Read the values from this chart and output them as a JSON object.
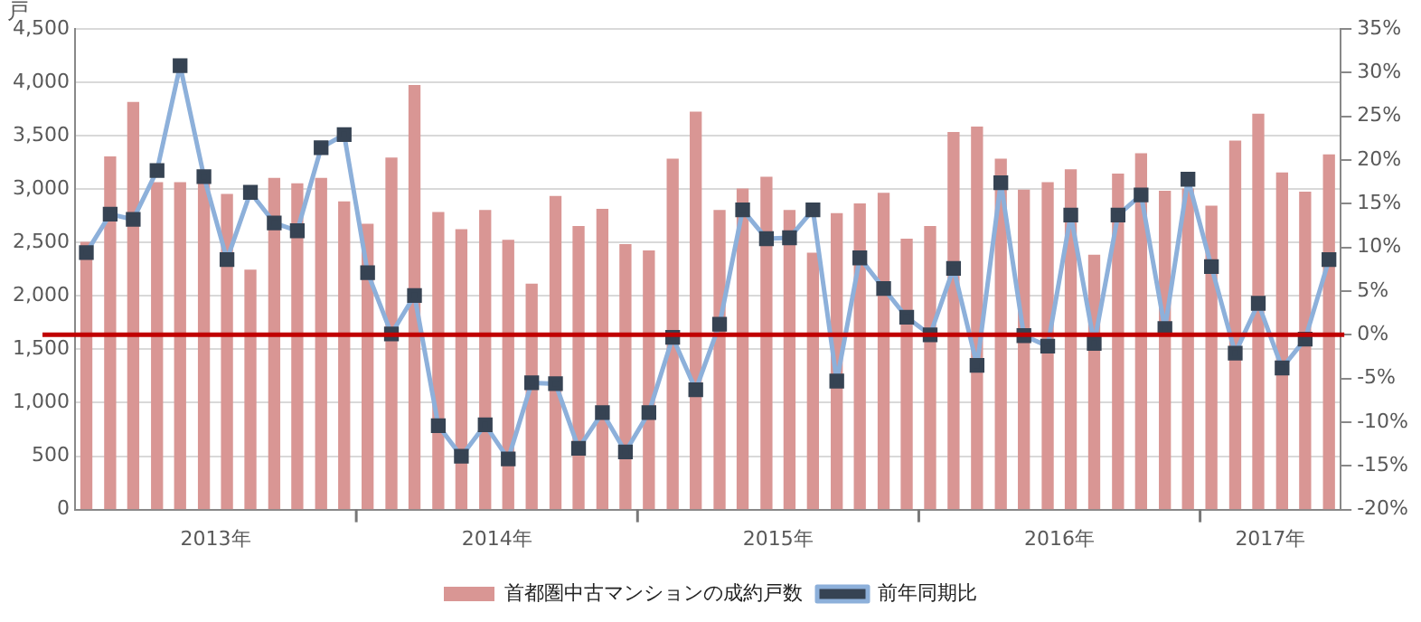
{
  "chart_data": {
    "type": "bar",
    "ylabel": "戸",
    "x": [
      "2013-01-16",
      "2013-02-15",
      "2013-03-16",
      "2013-04-16",
      "2013-05-16",
      "2013-06-16",
      "2013-07-16",
      "2013-08-16",
      "2013-09-16",
      "2013-10-16",
      "2013-11-16",
      "2013-12-16",
      "2014-01-16",
      "2014-02-15",
      "2014-03-16",
      "2014-04-16",
      "2014-05-16",
      "2014-06-16",
      "2014-07-16",
      "2014-08-16",
      "2014-09-16",
      "2014-10-16",
      "2014-11-16",
      "2014-12-16",
      "2015-01-16",
      "2015-02-15",
      "2015-03-16",
      "2015-04-16",
      "2015-05-16",
      "2015-06-16",
      "2015-07-16",
      "2015-08-16",
      "2015-09-16",
      "2015-10-16",
      "2015-11-16",
      "2015-12-16",
      "2016-01-16",
      "2016-02-15",
      "2016-03-16",
      "2016-04-16",
      "2016-05-16",
      "2016-06-16",
      "2016-07-16",
      "2016-08-16",
      "2016-09-16",
      "2016-10-16",
      "2016-11-16",
      "2016-12-16",
      "2017-01-16",
      "2017-02-15",
      "2017-03-16",
      "2017-04-16",
      "2017-05-16",
      "2017-06-16"
    ],
    "series": [
      {
        "name": "首都圏中古マンションの成約戸数",
        "color": "#d99694",
        "values": [
          2500,
          3300,
          3810,
          3060,
          3060,
          3050,
          2950,
          2240,
          3100,
          3050,
          3100,
          2880,
          2670,
          3290,
          3970,
          2780,
          2620,
          2800,
          2520,
          2110,
          2930,
          2650,
          2810,
          2480,
          2420,
          3280,
          3720,
          2800,
          3000,
          3110,
          2800,
          2400,
          2770,
          2860,
          2960,
          2530,
          2650,
          3530,
          3580,
          3280,
          2990,
          3060,
          3180,
          2380,
          3140,
          3330,
          2980,
          3000,
          2840,
          3450,
          3700,
          3150,
          2970,
          3320
        ]
      },
      {
        "name": "前年同期比",
        "type": "line",
        "axis": "y2",
        "color": "#8db0da",
        "values": [
          9.4,
          13.8,
          13.2,
          18.8,
          30.8,
          18.1,
          8.6,
          16.3,
          12.8,
          11.9,
          21.4,
          22.9,
          7.1,
          0.1,
          4.5,
          -10.4,
          -13.9,
          -10.3,
          -14.2,
          -5.5,
          -5.6,
          -13.0,
          -8.9,
          -13.4,
          -8.9,
          -0.3,
          -6.3,
          1.2,
          14.3,
          11.0,
          11.1,
          14.3,
          -5.3,
          8.8,
          5.3,
          2.0,
          0.0,
          7.6,
          -3.5,
          17.4,
          -0.1,
          -1.3,
          13.7,
          -1.0,
          13.7,
          16.0,
          0.7,
          17.8,
          7.8,
          -2.1,
          3.6,
          -3.8,
          -0.5,
          8.6
        ]
      }
    ],
    "xlim": [
      "2013-01-01",
      "2017-07-01"
    ],
    "xticks": [
      {
        "value": "2013-07-01",
        "label": "2013年"
      },
      {
        "value": "2014-01-01",
        "label": null
      },
      {
        "value": "2014-07-01",
        "label": "2014年"
      },
      {
        "value": "2015-01-01",
        "label": null
      },
      {
        "value": "2015-07-01",
        "label": "2015年"
      },
      {
        "value": "2016-01-01",
        "label": null
      },
      {
        "value": "2016-07-01",
        "label": "2016年"
      },
      {
        "value": "2017-01-01",
        "label": null
      },
      {
        "value": "2017-04-01",
        "label": "2017年"
      }
    ],
    "ylim": [
      0,
      4500
    ],
    "yticks": [
      {
        "value": 0,
        "label": "0"
      },
      {
        "value": 500,
        "label": "500"
      },
      {
        "value": 1000,
        "label": "1,000"
      },
      {
        "value": 1500,
        "label": "1,500"
      },
      {
        "value": 2000,
        "label": "2,000"
      },
      {
        "value": 2500,
        "label": "2,500"
      },
      {
        "value": 3000,
        "label": "3,000"
      },
      {
        "value": 3500,
        "label": "3,500"
      },
      {
        "value": 4000,
        "label": "4,000"
      },
      {
        "value": 4500,
        "label": "4,500"
      }
    ],
    "y2lim": [
      -20,
      35
    ],
    "y2ticks": [
      {
        "value": -20,
        "label": "-20%"
      },
      {
        "value": -15,
        "label": "-15%"
      },
      {
        "value": -10,
        "label": "-10%"
      },
      {
        "value": -5,
        "label": "-5%"
      },
      {
        "value": 0,
        "label": "0%"
      },
      {
        "value": 5,
        "label": "5%"
      },
      {
        "value": 10,
        "label": "10%"
      },
      {
        "value": 15,
        "label": "15%"
      },
      {
        "value": 20,
        "label": "20%"
      },
      {
        "value": 25,
        "label": "25%"
      },
      {
        "value": 30,
        "label": "30%"
      },
      {
        "value": 35,
        "label": "35%"
      }
    ],
    "ref_lines": [
      {
        "axis": "y2",
        "value": 0,
        "color": "#c00000"
      }
    ],
    "grid": "y",
    "legend": "bottom",
    "marker": "square"
  }
}
